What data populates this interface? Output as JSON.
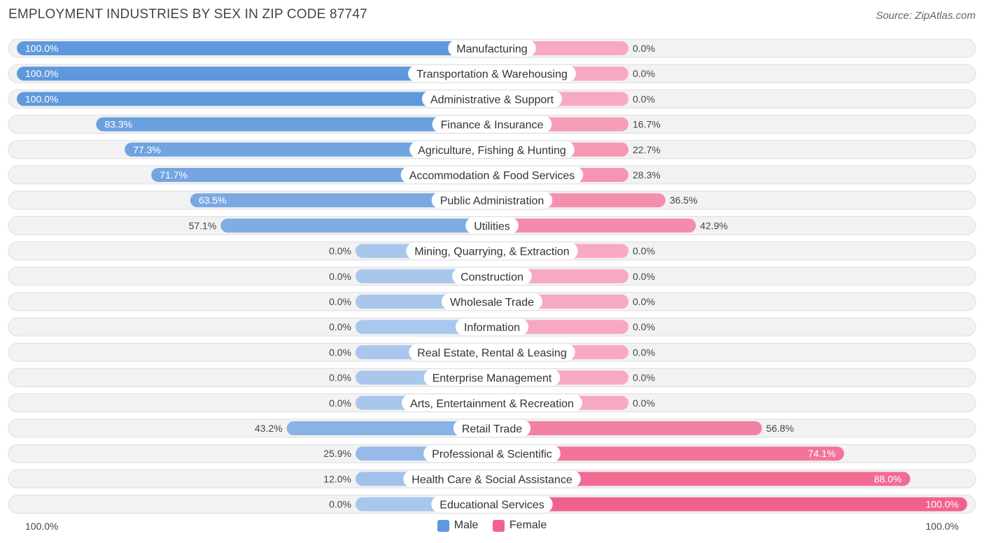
{
  "header": {
    "title": "EMPLOYMENT INDUSTRIES BY SEX IN ZIP CODE 87747",
    "source": "Source: ZipAtlas.com"
  },
  "colors": {
    "male_strong": "#5f98dc",
    "male_light": "#a9c7ec",
    "female_strong": "#f0628d",
    "female_light": "#f7a9c1",
    "row_bg": "#f2f2f2",
    "row_border": "#dedede"
  },
  "chart_data": {
    "type": "bar",
    "orientation": "horizontal-diverging",
    "title": "EMPLOYMENT INDUSTRIES BY SEX IN ZIP CODE 87747",
    "xlim": [
      -100,
      100
    ],
    "axis_left_label": "100.0%",
    "axis_right_label": "100.0%",
    "categories": [
      "Manufacturing",
      "Transportation & Warehousing",
      "Administrative & Support",
      "Finance & Insurance",
      "Agriculture, Fishing & Hunting",
      "Accommodation & Food Services",
      "Public Administration",
      "Utilities",
      "Mining, Quarrying, & Extraction",
      "Construction",
      "Wholesale Trade",
      "Information",
      "Real Estate, Rental & Leasing",
      "Enterprise Management",
      "Arts, Entertainment & Recreation",
      "Retail Trade",
      "Professional & Scientific",
      "Health Care & Social Assistance",
      "Educational Services"
    ],
    "series": [
      {
        "name": "Male",
        "values": [
          100.0,
          100.0,
          100.0,
          83.3,
          77.3,
          71.7,
          63.5,
          57.1,
          0.0,
          0.0,
          0.0,
          0.0,
          0.0,
          0.0,
          0.0,
          43.2,
          25.9,
          12.0,
          0.0
        ],
        "labels": [
          "100.0%",
          "100.0%",
          "100.0%",
          "83.3%",
          "77.3%",
          "71.7%",
          "63.5%",
          "57.1%",
          "0.0%",
          "0.0%",
          "0.0%",
          "0.0%",
          "0.0%",
          "0.0%",
          "0.0%",
          "43.2%",
          "25.9%",
          "12.0%",
          "0.0%"
        ]
      },
      {
        "name": "Female",
        "values": [
          0.0,
          0.0,
          0.0,
          16.7,
          22.7,
          28.3,
          36.5,
          42.9,
          0.0,
          0.0,
          0.0,
          0.0,
          0.0,
          0.0,
          0.0,
          56.8,
          74.1,
          88.0,
          100.0
        ],
        "labels": [
          "0.0%",
          "0.0%",
          "0.0%",
          "16.7%",
          "22.7%",
          "28.3%",
          "36.5%",
          "42.9%",
          "0.0%",
          "0.0%",
          "0.0%",
          "0.0%",
          "0.0%",
          "0.0%",
          "0.0%",
          "56.8%",
          "74.1%",
          "88.0%",
          "100.0%"
        ]
      }
    ],
    "legend": [
      "Male",
      "Female"
    ],
    "legend_position": "bottom-center"
  }
}
